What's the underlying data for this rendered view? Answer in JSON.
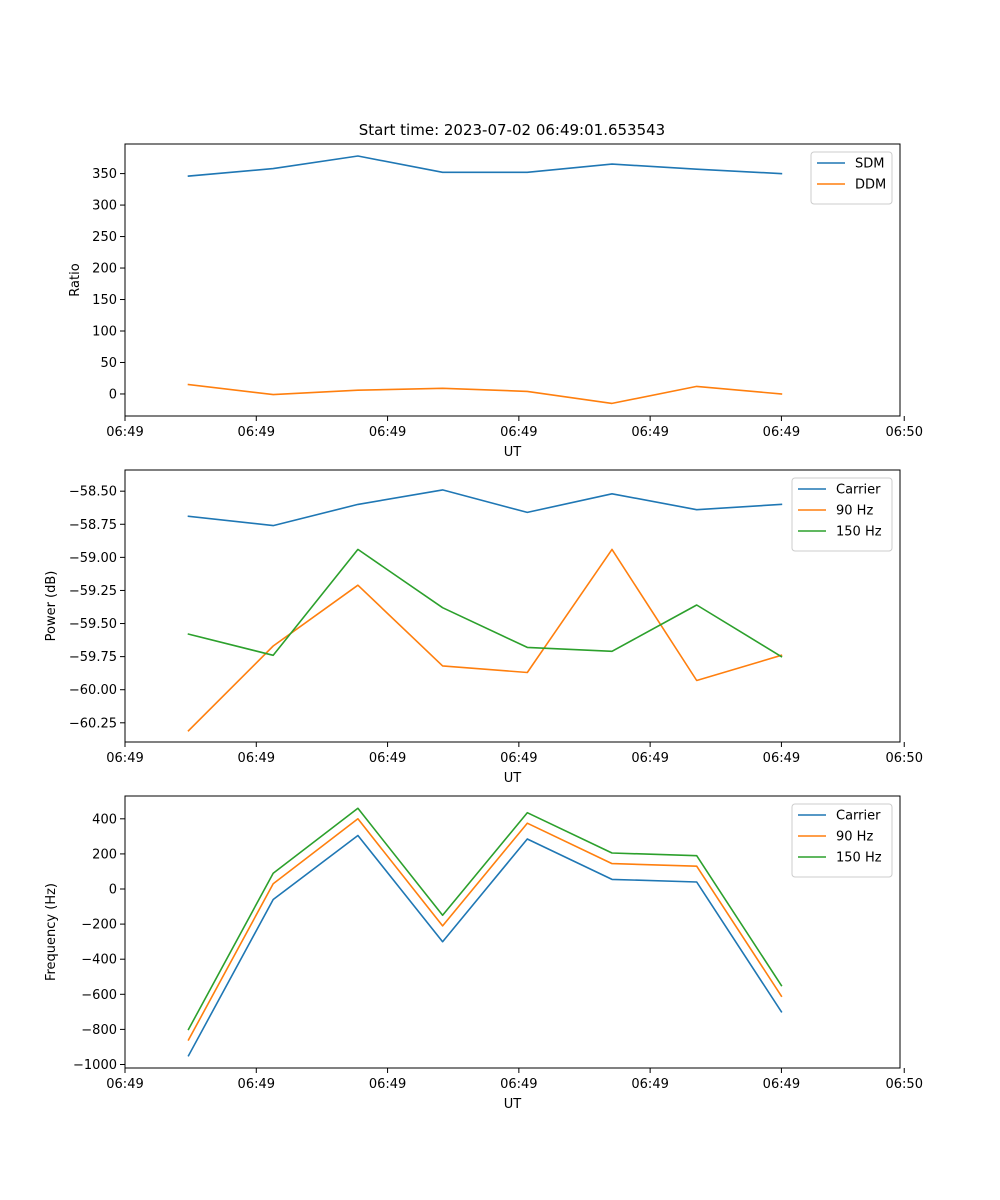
{
  "figure": {
    "title": "Start time: 2023-07-02 06:49:01.653543"
  },
  "colors": {
    "blue": "#1f77b4",
    "orange": "#ff7f0e",
    "green": "#2ca02c"
  },
  "chart_data": [
    {
      "id": "ratio",
      "type": "line",
      "title": "Start time: 2023-07-02 06:49:01.653543",
      "xlabel": "UT",
      "ylabel": "Ratio",
      "x": [
        0,
        1,
        2,
        3,
        4,
        5,
        6,
        7
      ],
      "xlim": [
        -0.75,
        8.4
      ],
      "xticks": [
        -0.75,
        0.8,
        2.35,
        3.9,
        5.45,
        7.0,
        8.45
      ],
      "xtick_labels": [
        "06:49",
        "06:49",
        "06:49",
        "06:49",
        "06:49",
        "06:49",
        "06:50"
      ],
      "ylim": [
        -35,
        397
      ],
      "yticks": [
        0,
        50,
        100,
        150,
        200,
        250,
        300,
        350
      ],
      "ytick_labels": [
        "0",
        "50",
        "100",
        "150",
        "200",
        "250",
        "300",
        "350"
      ],
      "legend_position": "top-right",
      "series": [
        {
          "name": "SDM",
          "color": "blue",
          "values": [
            346,
            358,
            378,
            352,
            352,
            365,
            357,
            350
          ]
        },
        {
          "name": "DDM",
          "color": "orange",
          "values": [
            15,
            -1,
            6,
            9,
            4,
            -15,
            12,
            0
          ]
        }
      ]
    },
    {
      "id": "power",
      "type": "line",
      "xlabel": "UT",
      "ylabel": "Power (dB)",
      "x": [
        0,
        1,
        2,
        3,
        4,
        5,
        6,
        7
      ],
      "xlim": [
        -0.75,
        8.4
      ],
      "xticks": [
        -0.75,
        0.8,
        2.35,
        3.9,
        5.45,
        7.0,
        8.45
      ],
      "xtick_labels": [
        "06:49",
        "06:49",
        "06:49",
        "06:49",
        "06:49",
        "06:49",
        "06:50"
      ],
      "ylim": [
        -60.395,
        -58.34
      ],
      "yticks": [
        -60.25,
        -60.0,
        -59.75,
        -59.5,
        -59.25,
        -59.0,
        -58.75,
        -58.5
      ],
      "ytick_labels": [
        "−60.25",
        "−60.00",
        "−59.75",
        "−59.50",
        "−59.25",
        "−59.00",
        "−58.75",
        "−58.50"
      ],
      "legend_position": "top-right",
      "series": [
        {
          "name": "Carrier",
          "color": "blue",
          "values": [
            -58.69,
            -58.76,
            -58.6,
            -58.49,
            -58.66,
            -58.52,
            -58.64,
            -58.6
          ]
        },
        {
          "name": "90 Hz",
          "color": "orange",
          "values": [
            -60.31,
            -59.67,
            -59.21,
            -59.82,
            -59.87,
            -58.94,
            -59.93,
            -59.74
          ]
        },
        {
          "name": "150 Hz",
          "color": "green",
          "values": [
            -59.58,
            -59.74,
            -58.94,
            -59.38,
            -59.68,
            -59.71,
            -59.36,
            -59.75
          ]
        }
      ]
    },
    {
      "id": "frequency",
      "type": "line",
      "xlabel": "UT",
      "ylabel": "Frequency (Hz)",
      "x": [
        0,
        1,
        2,
        3,
        4,
        5,
        6,
        7
      ],
      "xlim": [
        -0.75,
        8.4
      ],
      "xticks": [
        -0.75,
        0.8,
        2.35,
        3.9,
        5.45,
        7.0,
        8.45
      ],
      "xtick_labels": [
        "06:49",
        "06:49",
        "06:49",
        "06:49",
        "06:49",
        "06:49",
        "06:50"
      ],
      "ylim": [
        -1020,
        530
      ],
      "yticks": [
        -1000,
        -800,
        -600,
        -400,
        -200,
        0,
        200,
        400
      ],
      "ytick_labels": [
        "−1000",
        "−800",
        "−600",
        "−400",
        "−200",
        "0",
        "200",
        "400"
      ],
      "legend_position": "top-right",
      "series": [
        {
          "name": "Carrier",
          "color": "blue",
          "values": [
            -950,
            -60,
            305,
            -300,
            285,
            55,
            40,
            -700
          ]
        },
        {
          "name": "90 Hz",
          "color": "orange",
          "values": [
            -860,
            30,
            400,
            -210,
            375,
            145,
            130,
            -610
          ]
        },
        {
          "name": "150 Hz",
          "color": "green",
          "values": [
            -800,
            90,
            460,
            -150,
            435,
            205,
            190,
            -550
          ]
        }
      ]
    }
  ]
}
